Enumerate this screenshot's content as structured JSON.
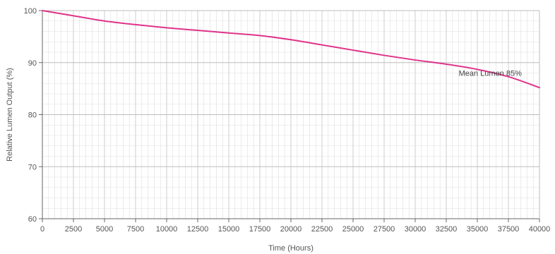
{
  "chart_data": {
    "type": "line",
    "title": "",
    "xlabel": "Time (Hours)",
    "ylabel": "Relative Lumen Output (%)",
    "xlim": [
      0,
      40000
    ],
    "ylim": [
      60,
      100
    ],
    "x_ticks": [
      0,
      2500,
      5000,
      7500,
      10000,
      12500,
      15000,
      17500,
      20000,
      22500,
      25000,
      27500,
      30000,
      32500,
      35000,
      37500,
      40000
    ],
    "y_ticks": [
      60,
      70,
      80,
      90,
      100
    ],
    "grid": true,
    "legend": "none",
    "series": [
      {
        "color": "#e0338a",
        "x": [
          0,
          2500,
          5000,
          7500,
          10000,
          12500,
          15000,
          17500,
          20000,
          22500,
          25000,
          27500,
          30000,
          32500,
          35000,
          37500,
          40000
        ],
        "y": [
          100,
          99.0,
          98.0,
          97.3,
          96.7,
          96.2,
          95.7,
          95.2,
          94.4,
          93.4,
          92.4,
          91.4,
          90.5,
          89.7,
          88.7,
          87.3,
          85.2
        ]
      }
    ],
    "annotations": [
      {
        "text": "Mean Lumen 85%",
        "x": 36000,
        "y": 88
      }
    ]
  }
}
